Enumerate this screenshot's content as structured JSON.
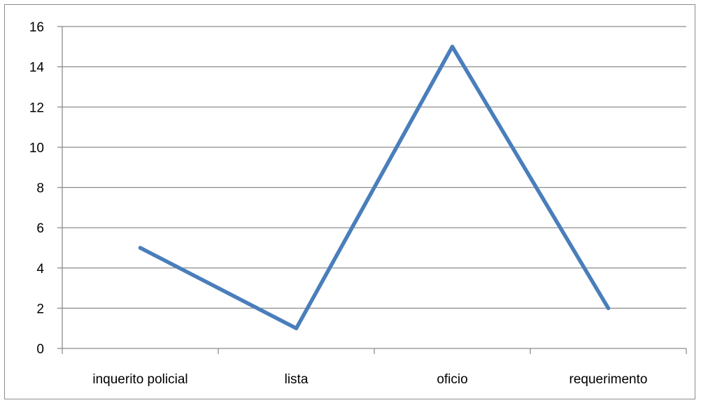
{
  "chart_data": {
    "type": "line",
    "title": "",
    "xlabel": "",
    "ylabel": "",
    "categories": [
      "inquerito policial",
      "lista",
      "oficio",
      "requerimento"
    ],
    "series": [
      {
        "values": [
          5,
          1,
          15,
          2
        ],
        "color": "#4a7ebb"
      }
    ],
    "ylim": [
      0,
      16
    ],
    "yticks": [
      0,
      2,
      4,
      6,
      8,
      10,
      12,
      14,
      16
    ],
    "grid": true,
    "legend": "none",
    "colors": {
      "gridline": "#8c8c8c",
      "axis": "#8c8c8c",
      "border": "#8c8c8c"
    }
  }
}
